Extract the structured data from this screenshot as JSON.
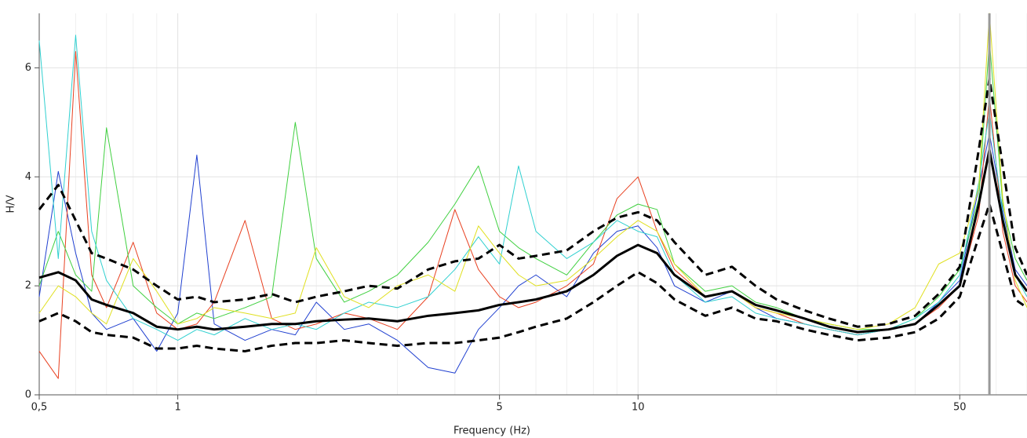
{
  "chart_data": {
    "type": "line",
    "xscale": "log",
    "grid": true,
    "xlabel": "Frequency (Hz)",
    "ylabel": "H/V",
    "xlim": [
      0.5,
      70
    ],
    "ylim": [
      0,
      7
    ],
    "xticks": [
      {
        "value": 0.5,
        "label": "0,5"
      },
      1,
      5,
      10,
      50
    ],
    "xminorticks": [
      0.6,
      0.7,
      0.8,
      0.9,
      2,
      3,
      4,
      6,
      7,
      8,
      9,
      20,
      30,
      40,
      60,
      70
    ],
    "yticks": [
      0,
      2,
      4,
      6
    ],
    "vline": 58,
    "vline_color": "#999999",
    "x": [
      0.5,
      0.55,
      0.6,
      0.65,
      0.7,
      0.8,
      0.9,
      1,
      1.1,
      1.2,
      1.4,
      1.6,
      1.8,
      2,
      2.3,
      2.6,
      3,
      3.5,
      4,
      4.5,
      5,
      5.5,
      6,
      7,
      8,
      9,
      10,
      11,
      12,
      14,
      16,
      18,
      20,
      23,
      26,
      30,
      35,
      40,
      45,
      50,
      55,
      58,
      62,
      66,
      70
    ],
    "series": [
      {
        "color": "#2040d0",
        "width": 1,
        "dashed": false,
        "values": [
          1.8,
          4.1,
          2.6,
          1.5,
          1.2,
          1.4,
          0.8,
          1.5,
          4.4,
          1.3,
          1.0,
          1.2,
          1.1,
          1.7,
          1.2,
          1.3,
          1.0,
          0.5,
          0.4,
          1.2,
          1.6,
          2.0,
          2.2,
          1.8,
          2.6,
          3.0,
          3.1,
          2.7,
          2.0,
          1.7,
          1.9,
          1.6,
          1.4,
          1.3,
          1.2,
          1.1,
          1.2,
          1.3,
          1.7,
          2.1,
          3.8,
          4.8,
          3.4,
          2.3,
          2.0
        ]
      },
      {
        "color": "#e84020",
        "width": 1,
        "dashed": false,
        "values": [
          0.8,
          0.3,
          6.3,
          2.2,
          1.6,
          2.8,
          1.5,
          1.2,
          1.3,
          1.7,
          3.2,
          1.4,
          1.2,
          1.3,
          1.5,
          1.4,
          1.2,
          1.8,
          3.4,
          2.3,
          1.8,
          1.6,
          1.7,
          2.0,
          2.4,
          3.6,
          4.0,
          3.0,
          2.3,
          1.8,
          1.9,
          1.6,
          1.5,
          1.3,
          1.2,
          1.1,
          1.2,
          1.3,
          1.6,
          2.0,
          3.3,
          5.5,
          3.0,
          2.0,
          1.7
        ]
      },
      {
        "color": "#40d040",
        "width": 1,
        "dashed": false,
        "values": [
          2.0,
          3.0,
          2.2,
          1.9,
          4.9,
          2.0,
          1.6,
          1.3,
          1.5,
          1.4,
          1.6,
          1.8,
          5.0,
          2.5,
          1.7,
          1.9,
          2.2,
          2.8,
          3.5,
          4.2,
          3.0,
          2.7,
          2.5,
          2.2,
          2.8,
          3.3,
          3.5,
          3.4,
          2.4,
          1.9,
          2.0,
          1.7,
          1.6,
          1.4,
          1.3,
          1.2,
          1.2,
          1.4,
          1.8,
          2.3,
          3.6,
          6.5,
          3.5,
          2.5,
          2.1
        ]
      },
      {
        "color": "#30d0d0",
        "width": 1,
        "dashed": false,
        "values": [
          6.5,
          2.5,
          6.6,
          3.0,
          2.1,
          1.4,
          1.2,
          1.0,
          1.2,
          1.1,
          1.4,
          1.2,
          1.3,
          1.2,
          1.5,
          1.7,
          1.6,
          1.8,
          2.3,
          2.9,
          2.4,
          4.2,
          3.0,
          2.5,
          2.8,
          3.2,
          3.0,
          2.9,
          2.2,
          1.7,
          1.8,
          1.5,
          1.4,
          1.3,
          1.2,
          1.1,
          1.2,
          1.4,
          1.7,
          2.2,
          3.9,
          5.2,
          3.3,
          2.2,
          1.8
        ]
      },
      {
        "color": "#e0e020",
        "width": 1,
        "dashed": false,
        "values": [
          1.5,
          2.0,
          1.8,
          1.5,
          1.3,
          2.5,
          1.9,
          1.3,
          1.4,
          1.6,
          1.5,
          1.4,
          1.5,
          2.7,
          1.8,
          1.6,
          2.0,
          2.2,
          1.9,
          3.1,
          2.6,
          2.2,
          2.0,
          2.1,
          2.5,
          2.9,
          3.2,
          3.0,
          2.4,
          1.8,
          1.9,
          1.6,
          1.5,
          1.4,
          1.3,
          1.2,
          1.3,
          1.6,
          2.4,
          2.6,
          3.8,
          7.0,
          3.6,
          2.1,
          1.6
        ]
      },
      {
        "color": "#000000",
        "width": 3,
        "dashed": true,
        "values": [
          3.4,
          3.85,
          3.2,
          2.6,
          2.5,
          2.3,
          2.0,
          1.75,
          1.8,
          1.7,
          1.75,
          1.85,
          1.7,
          1.8,
          1.9,
          2.0,
          1.95,
          2.3,
          2.45,
          2.5,
          2.75,
          2.5,
          2.55,
          2.65,
          3.0,
          3.25,
          3.35,
          3.2,
          2.8,
          2.2,
          2.35,
          2.0,
          1.75,
          1.55,
          1.4,
          1.25,
          1.3,
          1.45,
          1.85,
          2.35,
          4.5,
          5.8,
          4.2,
          2.7,
          2.2
        ]
      },
      {
        "color": "#000000",
        "width": 3,
        "dashed": true,
        "values": [
          1.35,
          1.5,
          1.35,
          1.15,
          1.1,
          1.05,
          0.85,
          0.85,
          0.9,
          0.85,
          0.8,
          0.9,
          0.95,
          0.95,
          1.0,
          0.95,
          0.9,
          0.95,
          0.95,
          1.0,
          1.05,
          1.15,
          1.25,
          1.4,
          1.7,
          2.0,
          2.25,
          2.05,
          1.75,
          1.45,
          1.6,
          1.4,
          1.35,
          1.2,
          1.1,
          1.0,
          1.05,
          1.15,
          1.4,
          1.8,
          2.9,
          3.5,
          2.6,
          1.75,
          1.6
        ]
      },
      {
        "color": "#000000",
        "width": 3,
        "dashed": false,
        "values": [
          2.15,
          2.25,
          2.1,
          1.75,
          1.65,
          1.5,
          1.25,
          1.2,
          1.25,
          1.2,
          1.25,
          1.3,
          1.3,
          1.35,
          1.38,
          1.4,
          1.35,
          1.45,
          1.5,
          1.55,
          1.65,
          1.7,
          1.75,
          1.9,
          2.2,
          2.55,
          2.75,
          2.6,
          2.2,
          1.8,
          1.9,
          1.65,
          1.55,
          1.4,
          1.25,
          1.15,
          1.2,
          1.3,
          1.65,
          2.0,
          3.5,
          4.5,
          3.2,
          2.2,
          1.9
        ]
      }
    ]
  }
}
